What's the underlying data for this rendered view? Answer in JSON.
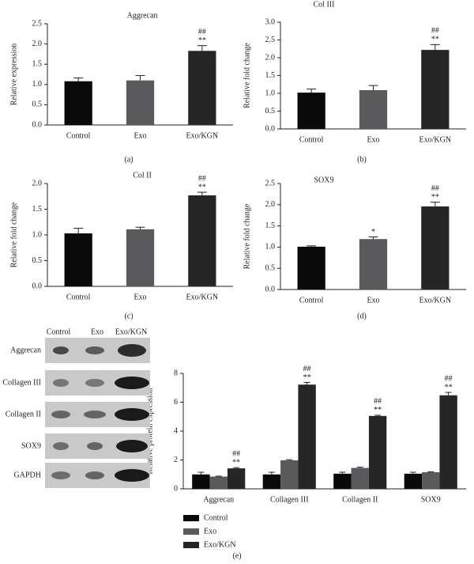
{
  "chart_data": [
    {
      "type": "bar",
      "title": "Aggrecan",
      "ylabel": "Relative expression",
      "panel_label": "(a)",
      "categories": [
        "Control",
        "Exo",
        "Exo/KGN"
      ],
      "values": [
        1.08,
        1.1,
        1.83
      ],
      "errors": [
        0.08,
        0.12,
        0.13
      ],
      "colors": [
        "#0a0a0a",
        "#5a5a5c",
        "#262626"
      ],
      "annotations": [
        null,
        null,
        [
          "##",
          "**"
        ]
      ],
      "ylim": [
        0,
        2.5
      ],
      "yticks": [
        {
          "value": 0,
          "label": "0.0"
        },
        0.5,
        {
          "value": 1,
          "label": "1.0"
        },
        1.5,
        {
          "value": 2,
          "label": "2.0"
        },
        2.5
      ]
    },
    {
      "type": "bar",
      "title": "Col III",
      "ylabel": "Relative fold change",
      "panel_label": "(b)",
      "categories": [
        "Control",
        "Exo",
        "Exo/KGN"
      ],
      "values": [
        1.02,
        1.09,
        2.22
      ],
      "errors": [
        0.1,
        0.13,
        0.15
      ],
      "colors": [
        "#0a0a0a",
        "#5a5a5c",
        "#262626"
      ],
      "annotations": [
        null,
        null,
        [
          "##",
          "**"
        ]
      ],
      "ylim": [
        0,
        3
      ],
      "yticks": [
        {
          "value": 0,
          "label": "0.0"
        },
        0.5,
        {
          "value": 1,
          "label": "1.0"
        },
        1.5,
        {
          "value": 2,
          "label": "2.0"
        },
        2.5,
        {
          "value": 3,
          "label": "3.0"
        }
      ]
    },
    {
      "type": "bar",
      "title": "Col II",
      "ylabel": "Relative fold change",
      "panel_label": "(c)",
      "categories": [
        "Control",
        "Exo",
        "Exo/KGN"
      ],
      "values": [
        1.03,
        1.11,
        1.77
      ],
      "errors": [
        0.1,
        0.04,
        0.06
      ],
      "colors": [
        "#0a0a0a",
        "#5a5a5c",
        "#262626"
      ],
      "annotations": [
        null,
        null,
        [
          "##",
          "**"
        ]
      ],
      "ylim": [
        0,
        2
      ],
      "yticks": [
        {
          "value": 0,
          "label": "0.0"
        },
        0.5,
        {
          "value": 1,
          "label": "1.0"
        },
        1.5,
        {
          "value": 2,
          "label": "2.0"
        }
      ]
    },
    {
      "type": "bar",
      "title": "SOX9",
      "ylabel": "Relative fold change",
      "panel_label": "(d)",
      "categories": [
        "Control",
        "Exo",
        "Exo/KGN"
      ],
      "values": [
        1.01,
        1.19,
        1.96
      ],
      "errors": [
        0.02,
        0.05,
        0.1
      ],
      "colors": [
        "#0a0a0a",
        "#5a5a5c",
        "#262626"
      ],
      "annotations": [
        null,
        [
          "*"
        ],
        [
          "##",
          "**"
        ]
      ],
      "ylim": [
        0,
        2.5
      ],
      "yticks": [
        {
          "value": 0,
          "label": "0.0"
        },
        0.5,
        {
          "value": 1,
          "label": "1.0"
        },
        1.5,
        {
          "value": 2,
          "label": "2.0"
        },
        2.5
      ]
    },
    {
      "type": "grouped_bar",
      "ylabel": "Relative protein expression",
      "panel_label": "(e)",
      "categories": [
        "Aggrecan",
        "Collagen III",
        "Collagen II",
        "SOX9"
      ],
      "series": [
        {
          "name": "Control",
          "color": "#0a0a0a",
          "values": [
            1.0,
            1.0,
            1.05,
            1.05
          ],
          "errors": [
            0.15,
            0.15,
            0.1,
            0.1
          ],
          "annotations": [
            null,
            null,
            null,
            null
          ]
        },
        {
          "name": "Exo",
          "color": "#5a5a5c",
          "values": [
            0.85,
            1.98,
            1.45,
            1.15
          ],
          "errors": [
            0.03,
            0.04,
            0.05,
            0.03
          ],
          "annotations": [
            null,
            null,
            null,
            null
          ]
        },
        {
          "name": "Exo/KGN",
          "color": "#262626",
          "values": [
            1.42,
            7.22,
            5.05,
            6.48
          ],
          "errors": [
            0.05,
            0.15,
            0.05,
            0.2
          ],
          "annotations": [
            [
              "##",
              "**"
            ],
            [
              "##",
              "**"
            ],
            [
              "##",
              "**"
            ],
            [
              "##",
              "**"
            ]
          ]
        }
      ],
      "ylim": [
        0,
        8
      ],
      "yticks": [
        0,
        2,
        4,
        6,
        8
      ],
      "legend": "bottom-left"
    }
  ],
  "blot": {
    "column_labels": [
      "Control",
      "Exo",
      "Exo/KGN"
    ],
    "row_labels": [
      "Aggrecan",
      "Collagen III",
      "Collagen II",
      "SOX9",
      "GAPDH"
    ]
  }
}
